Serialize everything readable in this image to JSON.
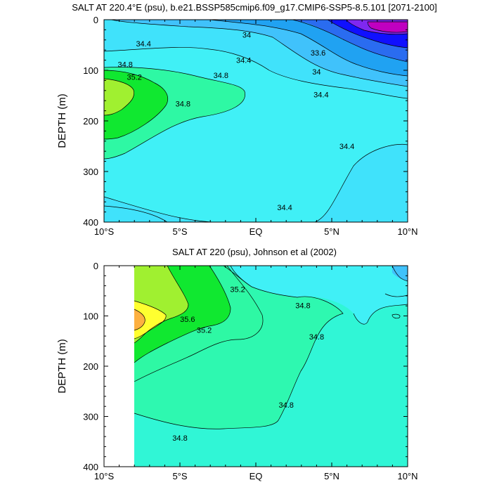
{
  "chart_data": [
    {
      "type": "contour",
      "title": "SALT AT 220.4°E (psu), b.e21.BSSP585cmip6.f09_g17.CMIP6-SSP5-8.5.101 [2071-2100]",
      "ylabel": "DEPTH (m)",
      "xlim": [
        -10,
        10
      ],
      "ylim": [
        0,
        400
      ],
      "y_inverted": true,
      "x_ticks": [
        -10,
        -5,
        0,
        5,
        10
      ],
      "x_tick_labels": [
        "10°S",
        "5°S",
        "EQ",
        "5°N",
        "10°N"
      ],
      "y_ticks": [
        0,
        100,
        200,
        300,
        400
      ],
      "y_tick_labels": [
        "0",
        "100",
        "200",
        "300",
        "400"
      ],
      "colors": {
        "low_purple": "#c000c0",
        "violet": "#7f28f0",
        "blue": "#1010ff",
        "medium_blue": "#2a6cf0",
        "azure": "#20a2f2",
        "sky": "#40c2fb",
        "light_cyan": "#40e2fb",
        "cyan": "#40f0f6",
        "pale_green": "#2ef8a4",
        "green": "#10e830",
        "light_green": "#a0f030"
      },
      "contour_labels": [
        {
          "text": "34.4",
          "x": -7.4,
          "y": 47
        },
        {
          "text": "34",
          "x": -0.6,
          "y": 30
        },
        {
          "text": "34.4",
          "x": -0.8,
          "y": 80
        },
        {
          "text": "33.6",
          "x": 4.1,
          "y": 65
        },
        {
          "text": "34",
          "x": 4.0,
          "y": 103
        },
        {
          "text": "34.4",
          "x": 4.3,
          "y": 148
        },
        {
          "text": "34.8",
          "x": -8.6,
          "y": 88
        },
        {
          "text": "35.2",
          "x": -8.0,
          "y": 113
        },
        {
          "text": "34.8",
          "x": -2.3,
          "y": 110
        },
        {
          "text": "34.8",
          "x": -4.8,
          "y": 166
        },
        {
          "text": "34.4",
          "x": 6.0,
          "y": 250
        },
        {
          "text": "34.4",
          "x": 1.9,
          "y": 371
        }
      ]
    },
    {
      "type": "contour",
      "title": "SALT AT 220 (psu), Johnson et al (2002)",
      "ylabel": "DEPTH (m)",
      "xlim": [
        -10,
        10
      ],
      "ylim": [
        0,
        400
      ],
      "y_inverted": true,
      "data_x_start": -8,
      "x_ticks": [
        -10,
        -5,
        0,
        5,
        10
      ],
      "x_tick_labels": [
        "10°S",
        "5°S",
        "EQ",
        "5°N",
        "10°N"
      ],
      "y_ticks": [
        0,
        100,
        200,
        300,
        400
      ],
      "y_tick_labels": [
        "0",
        "100",
        "200",
        "300",
        "400"
      ],
      "colors": {
        "sky": "#40c2fb",
        "cyan": "#40f0f6",
        "aqua": "#30f6d6",
        "aquamarine": "#2ef8b0",
        "pale_green": "#2ef8a4",
        "green": "#10e830",
        "lime": "#a0f030",
        "yellow": "#ffff30",
        "orange": "#fdb040"
      },
      "contour_labels": [
        {
          "text": "35.2",
          "x": -1.2,
          "y": 47
        },
        {
          "text": "35.6",
          "x": -4.5,
          "y": 106
        },
        {
          "text": "35.2",
          "x": -3.4,
          "y": 128
        },
        {
          "text": "34.8",
          "x": 3.1,
          "y": 79
        },
        {
          "text": "34.8",
          "x": 4.0,
          "y": 141
        },
        {
          "text": "34.8",
          "x": 2.0,
          "y": 277
        },
        {
          "text": "34.8",
          "x": -5.0,
          "y": 343
        }
      ]
    }
  ]
}
